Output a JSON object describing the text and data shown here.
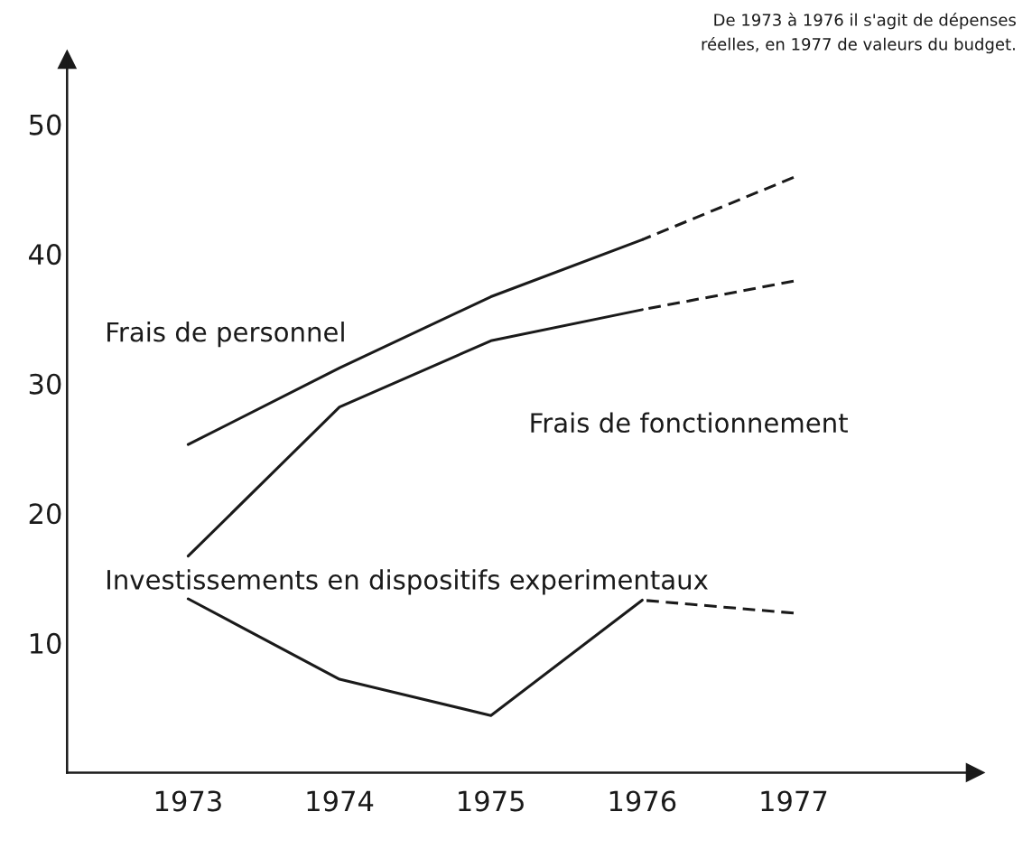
{
  "chart_data": {
    "type": "line",
    "annotations": [
      "De 1973 à 1976 il s'agit de dépenses\nréelles, en 1977 de valeurs du budget."
    ],
    "series": [
      {
        "name": "Frais de personnel",
        "color": "#1a1a1a",
        "line_style": "solid",
        "x": [
          1973,
          1974,
          1975,
          1976
        ],
        "values": [
          25.3,
          31.2,
          36.7,
          41.1
        ]
      },
      {
        "color": "#1a1a1a",
        "line_style": "dashed",
        "x": [
          1976,
          1977
        ],
        "values": [
          41.1,
          45.9
        ]
      },
      {
        "name": "Frais de fonctionnement",
        "color": "#1a1a1a",
        "line_style": "solid",
        "x": [
          1973,
          1974,
          1975,
          1976
        ],
        "values": [
          16.7,
          28.2,
          33.3,
          35.7
        ]
      },
      {
        "color": "#1a1a1a",
        "line_style": "dashed",
        "x": [
          1976,
          1977
        ],
        "values": [
          35.7,
          37.9
        ]
      },
      {
        "name": "Investissements en dispositifs experimentaux",
        "color": "#1a1a1a",
        "line_style": "solid",
        "x": [
          1973,
          1974,
          1975,
          1976
        ],
        "values": [
          13.4,
          7.2,
          4.4,
          13.3
        ]
      },
      {
        "color": "#1a1a1a",
        "line_style": "dashed",
        "x": [
          1976,
          1977
        ],
        "values": [
          13.3,
          12.3
        ]
      }
    ],
    "xlim": [
      1972.2,
      1978.2
    ],
    "xticks": [
      1973,
      1974,
      1975,
      1976,
      1977
    ],
    "ylim": [
      0,
      55
    ],
    "yticks": [
      10,
      20,
      30,
      40,
      50
    ],
    "grid": false,
    "legend": false,
    "marker": "none"
  }
}
